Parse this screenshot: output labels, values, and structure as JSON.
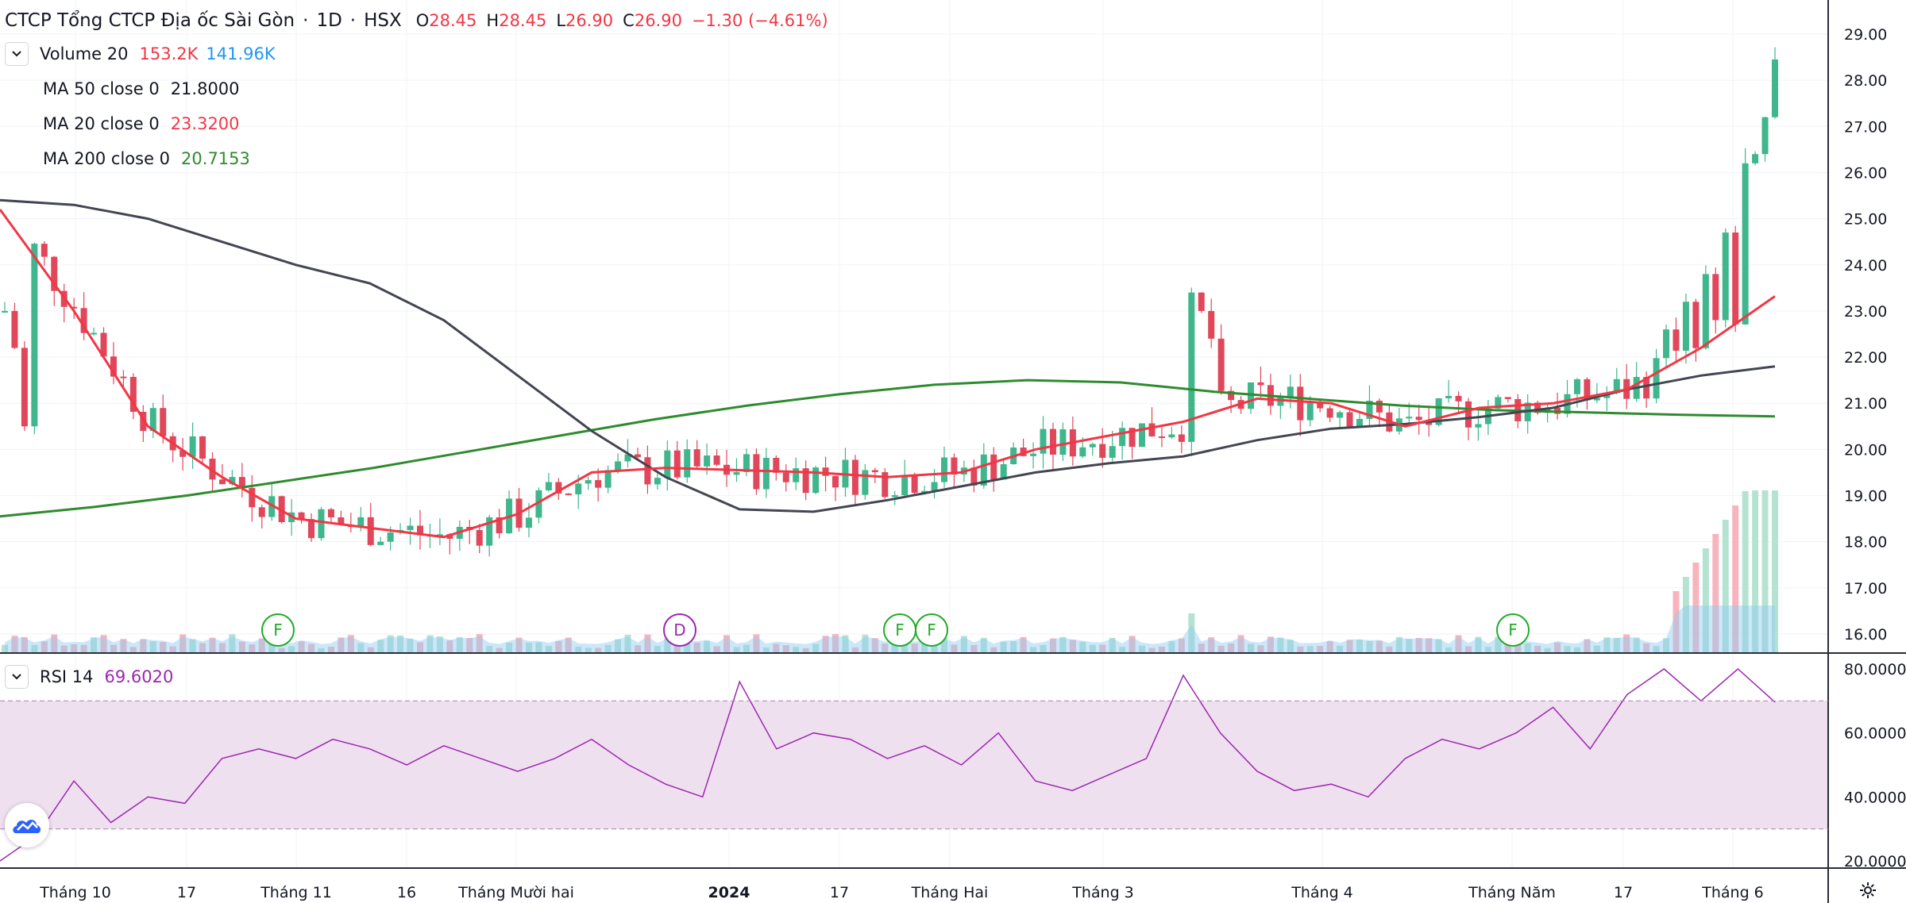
{
  "header": {
    "symbol": "CTCP Tổng CTCP Địa ốc Sài Gòn",
    "interval": "1D",
    "exchange": "HSX",
    "sep": "·",
    "o_label": "O",
    "o_value": "28.45",
    "h_label": "H",
    "h_value": "28.45",
    "l_label": "L",
    "l_value": "26.90",
    "c_label": "C",
    "c_value": "26.90",
    "change": "−1.30 (−4.61%)"
  },
  "indicators": {
    "volume": {
      "label": "Volume 20",
      "v1": "153.2K",
      "v2": "141.96K"
    },
    "ma50": {
      "label": "MA 50 close 0",
      "value": "21.8000"
    },
    "ma20": {
      "label": "MA 20 close 0",
      "value": "23.3200"
    },
    "ma200": {
      "label": "MA 200 close 0",
      "value": "20.7153"
    },
    "rsi": {
      "label": "RSI 14",
      "value": "69.6020"
    }
  },
  "colors": {
    "up": "#26a69a",
    "up_fill": "#3fb68b",
    "down": "#e0475a",
    "ma50": "#434651",
    "ma20": "#f23645",
    "ma200": "#2e8b2e",
    "volume_up": "#b5e3d2",
    "volume_down": "#f7b4bd",
    "volume_ma": "#8fc9f2",
    "rsi_line": "#9c27b0",
    "rsi_band": "#efe0f0",
    "price_axis_text": "#131722"
  },
  "price_axis": [
    "29.00",
    "28.00",
    "27.00",
    "26.00",
    "25.00",
    "24.00",
    "23.00",
    "22.00",
    "21.00",
    "20.00",
    "19.00",
    "18.00",
    "17.00",
    "16.00"
  ],
  "rsi_axis": [
    "80.0000",
    "60.0000",
    "40.0000",
    "20.0000"
  ],
  "time_axis": [
    "Tháng 10",
    "17",
    "Tháng 11",
    "16",
    "Tháng Mười hai",
    "2024",
    "17",
    "Tháng Hai",
    "Tháng 3",
    "Tháng 4",
    "Tháng Năm",
    "17",
    "Tháng 6"
  ],
  "markers": [
    {
      "letter": "F",
      "kind": "dividend"
    },
    {
      "letter": "D",
      "kind": "split"
    },
    {
      "letter": "F",
      "kind": "dividend"
    },
    {
      "letter": "F",
      "kind": "dividend"
    },
    {
      "letter": "F",
      "kind": "dividend"
    }
  ],
  "chart_data": {
    "type": "candlestick",
    "price_range": [
      15.6,
      29.5
    ],
    "rsi_range": [
      17,
      82
    ],
    "rsi_band": [
      30,
      70
    ],
    "series": [
      {
        "name": "MA 50 close 0",
        "values": [
          25.4,
          25.3,
          25.0,
          24.5,
          24.0,
          23.6,
          22.8,
          21.6,
          20.4,
          19.4,
          18.7,
          18.65,
          18.9,
          19.2,
          19.5,
          19.7,
          19.85,
          20.2,
          20.45,
          20.55,
          20.7,
          20.9,
          21.3,
          21.6,
          21.8
        ]
      },
      {
        "name": "MA 20 close 0",
        "values": [
          25.2,
          23.0,
          20.5,
          19.4,
          18.5,
          18.3,
          18.1,
          18.6,
          19.5,
          19.6,
          19.55,
          19.5,
          19.4,
          19.5,
          20.0,
          20.3,
          20.6,
          21.1,
          21.0,
          20.5,
          20.9,
          21.0,
          21.3,
          22.2,
          23.32
        ]
      },
      {
        "name": "MA 200 close 0",
        "values": [
          18.55,
          18.75,
          19.0,
          19.3,
          19.6,
          19.95,
          20.3,
          20.65,
          20.95,
          21.2,
          21.4,
          21.5,
          21.45,
          21.25,
          21.1,
          20.95,
          20.85,
          20.8,
          20.75,
          20.7153
        ]
      },
      {
        "name": "RSI 14",
        "values": [
          20,
          28,
          45,
          32,
          40,
          38,
          52,
          55,
          52,
          58,
          55,
          50,
          56,
          52,
          48,
          52,
          58,
          50,
          44,
          40,
          76,
          55,
          60,
          58,
          52,
          56,
          50,
          60,
          45,
          42,
          47,
          52,
          78,
          60,
          48,
          42,
          44,
          40,
          52,
          58,
          55,
          60,
          68,
          55,
          72,
          80,
          70,
          80,
          69.6
        ]
      }
    ],
    "volume": {
      "last": "153.2K",
      "ma": "141.96K"
    }
  }
}
